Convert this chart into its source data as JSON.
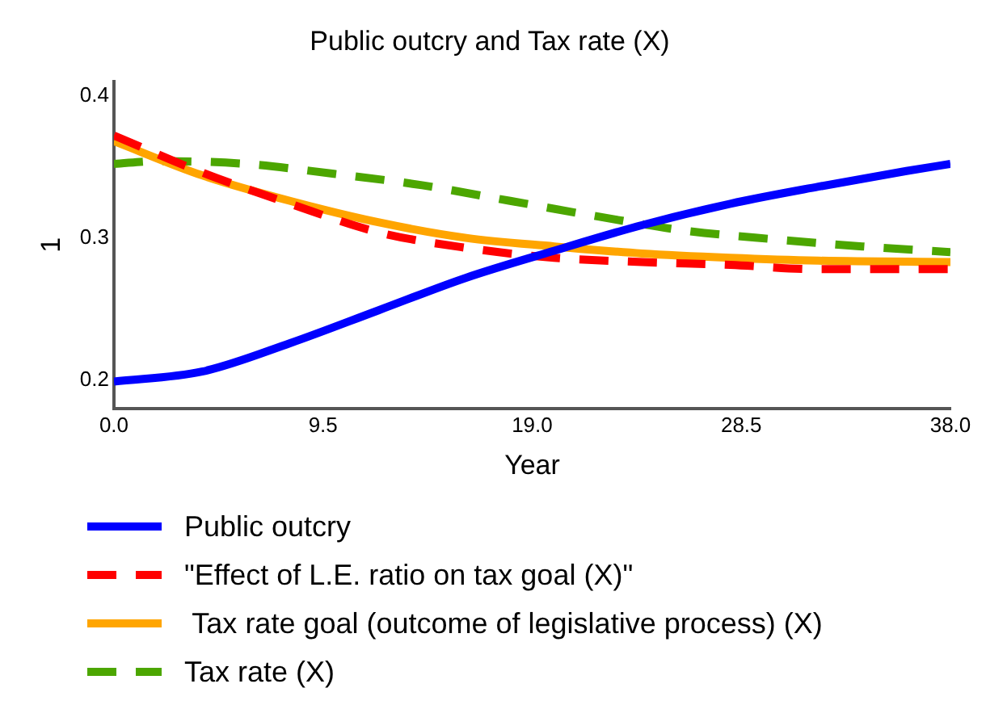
{
  "chart_data": {
    "type": "line",
    "title": "Public outcry and Tax rate (X)",
    "xlabel": "Year",
    "ylabel": "1",
    "xlim": [
      0,
      38
    ],
    "xticks": [
      {
        "value": 0,
        "label": "0.0"
      },
      9.5,
      {
        "value": 19,
        "label": "19.0"
      },
      28.5,
      {
        "value": 38,
        "label": "38.0"
      }
    ],
    "ylim": [
      0.18,
      0.41
    ],
    "yticks": [
      0.2,
      0.3,
      0.4
    ],
    "grid": false,
    "legend": "bottom",
    "marker": "none",
    "series": [
      {
        "name": "Public outcry",
        "color": "#0000ff",
        "line_style": "solid",
        "x": [
          0,
          4,
          8,
          12,
          16,
          20,
          24,
          28,
          32,
          36,
          38
        ],
        "values": [
          0.199,
          0.206,
          0.226,
          0.249,
          0.272,
          0.291,
          0.309,
          0.324,
          0.336,
          0.347,
          0.352
        ]
      },
      {
        "name": "\"Effect of L.E. ratio on tax goal (X)\"",
        "color": "#ff0000",
        "line_style": "dashed",
        "x": [
          0,
          4,
          8,
          12,
          16,
          20,
          24,
          28,
          32,
          38
        ],
        "values": [
          0.372,
          0.346,
          0.324,
          0.304,
          0.293,
          0.286,
          0.283,
          0.281,
          0.278,
          0.278
        ]
      },
      {
        "name": " Tax rate goal (outcome of legislative process) (X)",
        "color": "#ffa500",
        "line_style": "solid",
        "x": [
          0,
          4,
          8,
          12,
          16,
          20,
          24,
          28,
          32,
          38
        ],
        "values": [
          0.368,
          0.344,
          0.326,
          0.311,
          0.3,
          0.294,
          0.289,
          0.286,
          0.284,
          0.283
        ]
      },
      {
        "name": "Tax rate (X)",
        "color": "#4ca600",
        "line_style": "dashed",
        "x": [
          0,
          2,
          6,
          10,
          14,
          18,
          22,
          26,
          30,
          34,
          38
        ],
        "values": [
          0.352,
          0.354,
          0.352,
          0.345,
          0.337,
          0.326,
          0.315,
          0.305,
          0.299,
          0.294,
          0.29
        ]
      }
    ]
  }
}
